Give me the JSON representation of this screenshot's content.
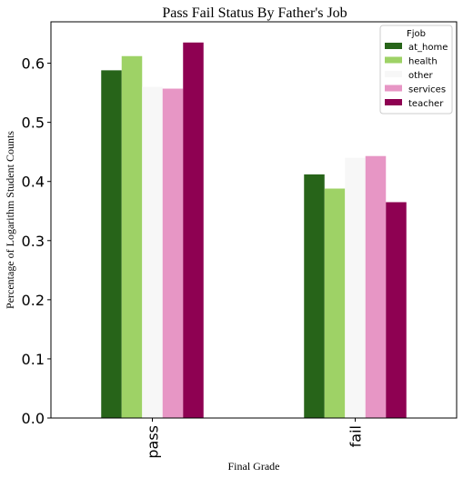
{
  "chart_data": {
    "type": "bar",
    "title": "Pass Fail Status By Father's Job",
    "xlabel": "Final Grade",
    "ylabel": "Percentage of Logarithm Student Counts",
    "categories": [
      "pass",
      "fail"
    ],
    "ylim": [
      0,
      0.67
    ],
    "yticks": [
      "0.0",
      "0.1",
      "0.2",
      "0.3",
      "0.4",
      "0.5",
      "0.6"
    ],
    "legend": {
      "title": "Fjob",
      "placement": "top-right"
    },
    "grid": false,
    "series": [
      {
        "name": "at_home",
        "color": "#276419",
        "values": [
          0.588,
          0.412
        ]
      },
      {
        "name": "health",
        "color": "#9ed266",
        "values": [
          0.612,
          0.388
        ]
      },
      {
        "name": "other",
        "color": "#f7f7f7",
        "values": [
          0.56,
          0.44
        ]
      },
      {
        "name": "services",
        "color": "#e796c5",
        "values": [
          0.557,
          0.443
        ]
      },
      {
        "name": "teacher",
        "color": "#8e0152",
        "values": [
          0.635,
          0.365
        ]
      }
    ]
  }
}
